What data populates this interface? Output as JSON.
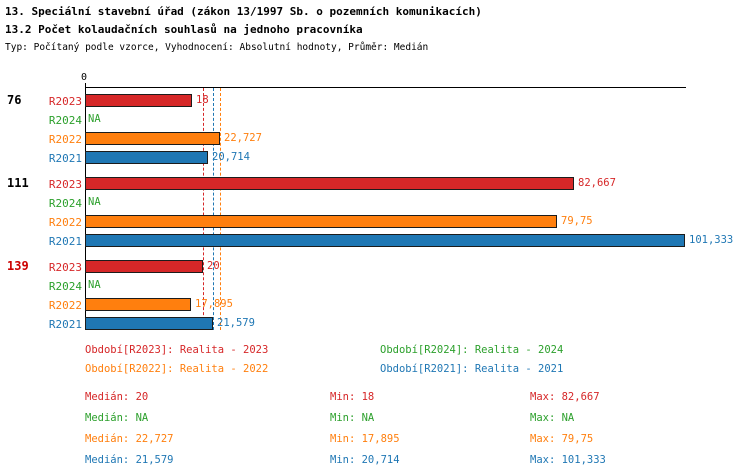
{
  "title": "13. Speciální stavební úřad (zákon 13/1997 Sb. o pozemních komunikacích)",
  "subtitle": "13.2 Počet kolaudačních souhlasů na jednoho pracovníka",
  "meta": "Typ: Počítaný podle vzorce, Vyhodnocení: Absolutní hodnoty, Průměr: Medián",
  "colors": {
    "R2023": "#d62728",
    "R2024": "#2ca02c",
    "R2022": "#ff7f0e",
    "R2021": "#1f77b4",
    "highlight_group": "#cc0000",
    "axis": "#000000"
  },
  "chart_data": {
    "type": "bar",
    "orientation": "horizontal",
    "origin_label": "0",
    "xlim": [
      0,
      101.5
    ],
    "grid": false,
    "series_order": [
      "R2023",
      "R2024",
      "R2022",
      "R2021"
    ],
    "groups": [
      {
        "label": "76",
        "highlight": false,
        "bars": [
          {
            "series": "R2023",
            "value": 18,
            "display": "18"
          },
          {
            "series": "R2024",
            "value": null,
            "display": "NA"
          },
          {
            "series": "R2022",
            "value": 22.727,
            "display": "22,727"
          },
          {
            "series": "R2021",
            "value": 20.714,
            "display": "20,714"
          }
        ]
      },
      {
        "label": "111",
        "highlight": false,
        "bars": [
          {
            "series": "R2023",
            "value": 82.667,
            "display": "82,667"
          },
          {
            "series": "R2024",
            "value": null,
            "display": "NA"
          },
          {
            "series": "R2022",
            "value": 79.75,
            "display": "79,75"
          },
          {
            "series": "R2021",
            "value": 101.333,
            "display": "101,333"
          }
        ]
      },
      {
        "label": "139",
        "highlight": true,
        "bars": [
          {
            "series": "R2023",
            "value": 20,
            "display": "20"
          },
          {
            "series": "R2024",
            "value": null,
            "display": "NA"
          },
          {
            "series": "R2022",
            "value": 17.895,
            "display": "17,895"
          },
          {
            "series": "R2021",
            "value": 21.579,
            "display": "21,579"
          }
        ]
      }
    ],
    "median_lines": [
      {
        "series": "R2023",
        "value": 20
      },
      {
        "series": "R2021",
        "value": 21.579
      },
      {
        "series": "R2022",
        "value": 22.727
      }
    ],
    "legend": [
      {
        "series": "R2023",
        "text": "Období[R2023]: Realita - 2023",
        "col": 0,
        "row": 0
      },
      {
        "series": "R2024",
        "text": "Období[R2024]: Realita - 2024",
        "col": 1,
        "row": 0
      },
      {
        "series": "R2022",
        "text": "Období[R2022]: Realita - 2022",
        "col": 0,
        "row": 1
      },
      {
        "series": "R2021",
        "text": "Období[R2021]: Realita - 2021",
        "col": 1,
        "row": 1
      }
    ],
    "stats": [
      {
        "series": "R2023",
        "median": "Medián: 20",
        "min": "Min: 18",
        "max": "Max: 82,667"
      },
      {
        "series": "R2024",
        "median": "Medián: NA",
        "min": "Min: NA",
        "max": "Max: NA"
      },
      {
        "series": "R2022",
        "median": "Medián: 22,727",
        "min": "Min: 17,895",
        "max": "Max: 79,75"
      },
      {
        "series": "R2021",
        "median": "Medián: 21,579",
        "min": "Min: 20,714",
        "max": "Max: 101,333"
      }
    ]
  }
}
